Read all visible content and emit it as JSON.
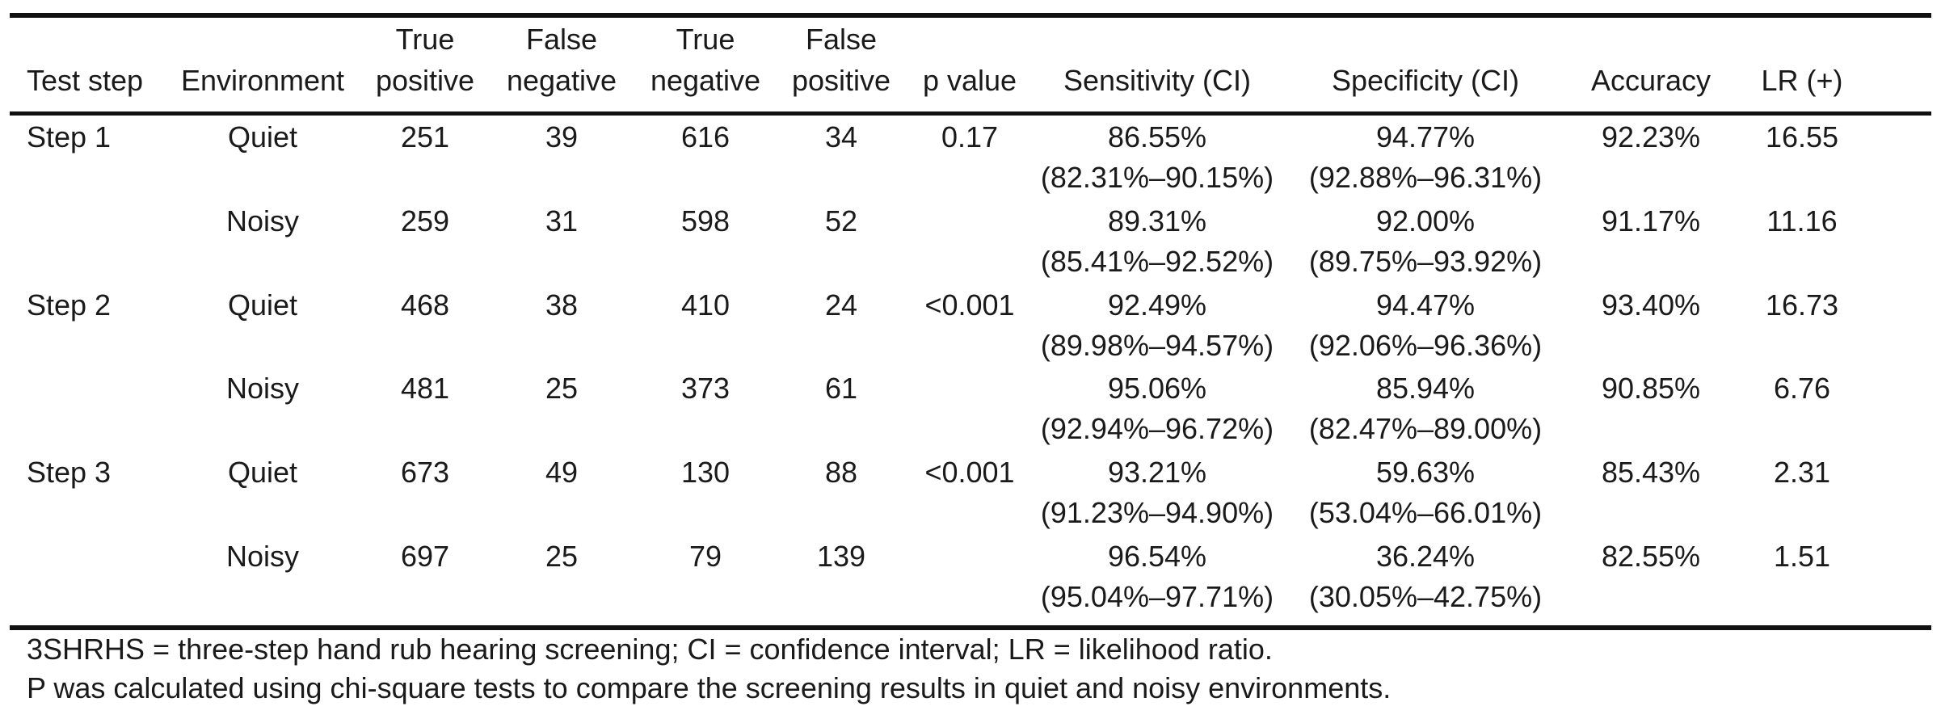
{
  "table": {
    "headers": [
      "Test step",
      "Environment",
      "True positive",
      "False negative",
      "True negative",
      "False positive",
      "p value",
      "Sensitivity (CI)",
      "Specificity (CI)",
      "Accuracy",
      "LR (+)"
    ],
    "header_lines": {
      "test_step": "Test step",
      "environment": "Environment",
      "true_positive": [
        "True",
        "positive"
      ],
      "false_negative": [
        "False",
        "negative"
      ],
      "true_negative": [
        "True",
        "negative"
      ],
      "false_positive": [
        "False",
        "positive"
      ],
      "p_value": "p value",
      "sensitivity": "Sensitivity (CI)",
      "specificity": "Specificity (CI)",
      "accuracy": "Accuracy",
      "lr": "LR (+)"
    },
    "rows": [
      {
        "step": "Step 1",
        "environment": "Quiet",
        "true_positive": "251",
        "false_negative": "39",
        "true_negative": "616",
        "false_positive": "34",
        "p_value": "0.17",
        "sensitivity": "86.55%",
        "sensitivity_ci": "(82.31%–90.15%)",
        "specificity": "94.77%",
        "specificity_ci": "(92.88%–96.31%)",
        "accuracy": "92.23%",
        "lr": "16.55"
      },
      {
        "step": "",
        "environment": "Noisy",
        "true_positive": "259",
        "false_negative": "31",
        "true_negative": "598",
        "false_positive": "52",
        "p_value": "",
        "sensitivity": "89.31%",
        "sensitivity_ci": "(85.41%–92.52%)",
        "specificity": "92.00%",
        "specificity_ci": "(89.75%–93.92%)",
        "accuracy": "91.17%",
        "lr": "11.16"
      },
      {
        "step": "Step 2",
        "environment": "Quiet",
        "true_positive": "468",
        "false_negative": "38",
        "true_negative": "410",
        "false_positive": "24",
        "p_value": "<0.001",
        "sensitivity": "92.49%",
        "sensitivity_ci": "(89.98%–94.57%)",
        "specificity": "94.47%",
        "specificity_ci": "(92.06%–96.36%)",
        "accuracy": "93.40%",
        "lr": "16.73"
      },
      {
        "step": "",
        "environment": "Noisy",
        "true_positive": "481",
        "false_negative": "25",
        "true_negative": "373",
        "false_positive": "61",
        "p_value": "",
        "sensitivity": "95.06%",
        "sensitivity_ci": "(92.94%–96.72%)",
        "specificity": "85.94%",
        "specificity_ci": "(82.47%–89.00%)",
        "accuracy": "90.85%",
        "lr": "6.76"
      },
      {
        "step": "Step 3",
        "environment": "Quiet",
        "true_positive": "673",
        "false_negative": "49",
        "true_negative": "130",
        "false_positive": "88",
        "p_value": "<0.001",
        "sensitivity": "93.21%",
        "sensitivity_ci": "(91.23%–94.90%)",
        "specificity": "59.63%",
        "specificity_ci": "(53.04%–66.01%)",
        "accuracy": "85.43%",
        "lr": "2.31"
      },
      {
        "step": "",
        "environment": "Noisy",
        "true_positive": "697",
        "false_negative": "25",
        "true_negative": "79",
        "false_positive": "139",
        "p_value": "",
        "sensitivity": "96.54%",
        "sensitivity_ci": "(95.04%–97.71%)",
        "specificity": "36.24%",
        "specificity_ci": "(30.05%–42.75%)",
        "accuracy": "82.55%",
        "lr": "1.51"
      }
    ]
  },
  "footnotes": [
    "3SHRHS = three-step hand rub hearing screening; CI = confidence interval; LR = likelihood ratio.",
    "P was calculated using chi-square tests to compare the screening results in quiet and noisy environments."
  ]
}
